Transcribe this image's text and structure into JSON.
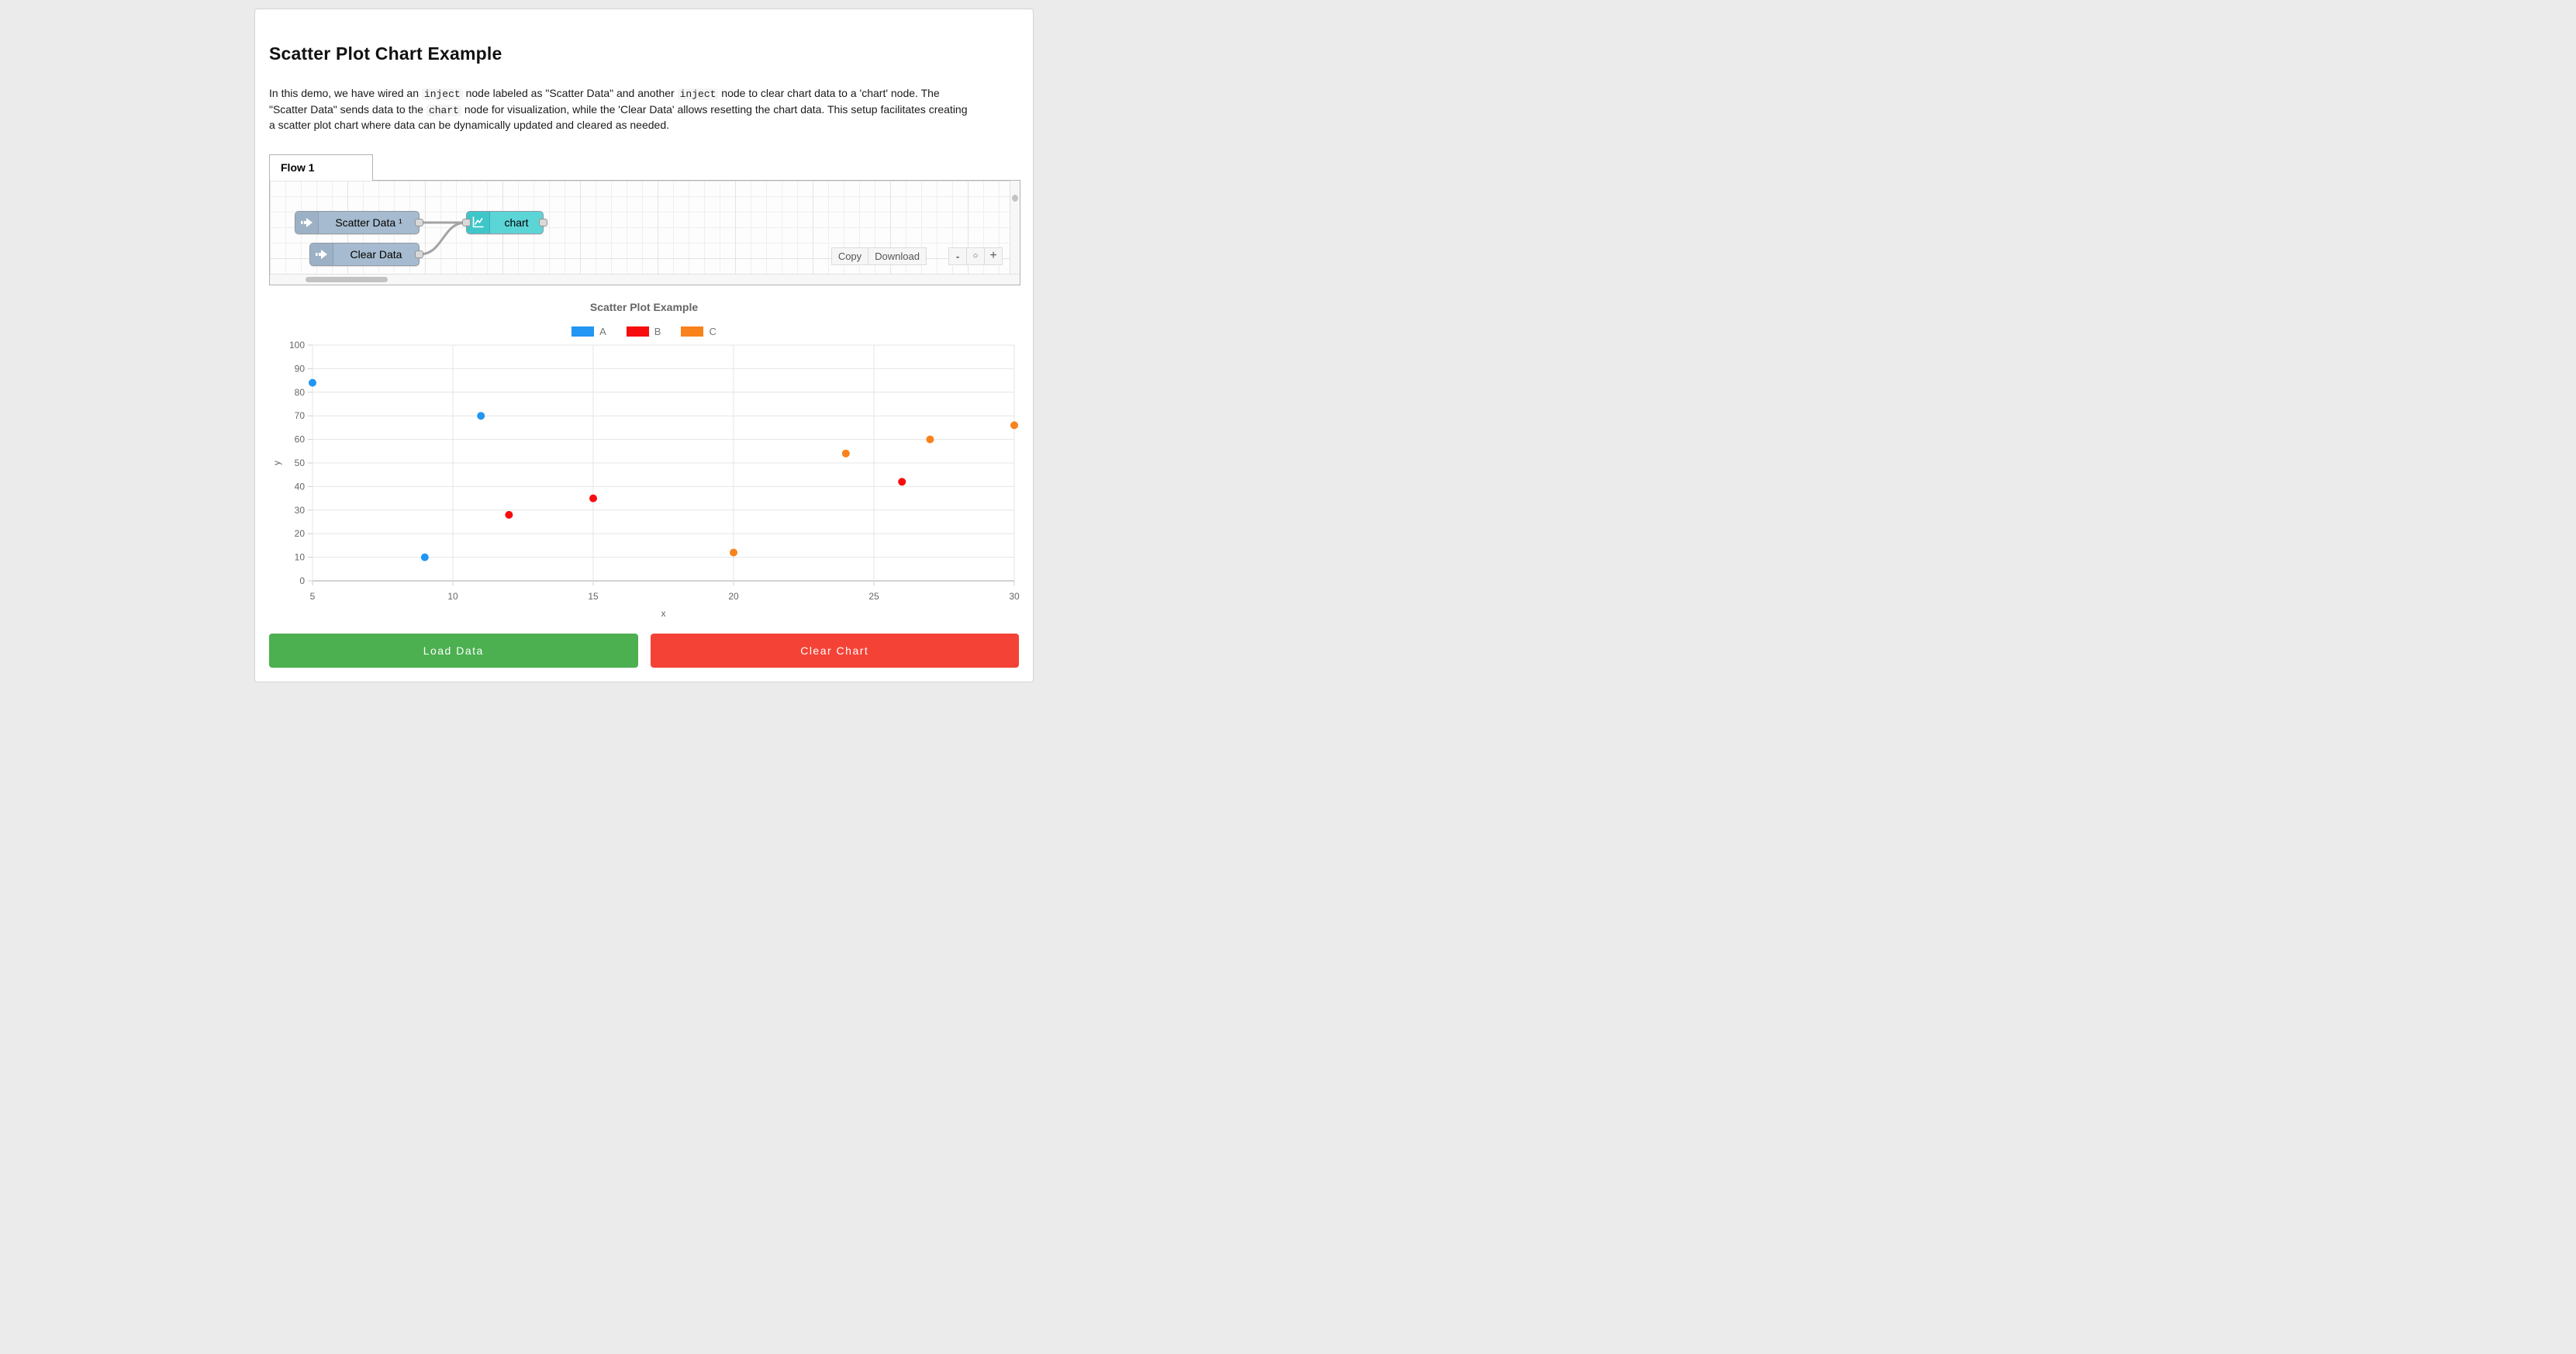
{
  "header": {
    "title": "Scatter Plot Chart Example"
  },
  "description": {
    "parts": [
      {
        "t": "text",
        "v": "In this demo, we have wired an "
      },
      {
        "t": "code",
        "v": "inject"
      },
      {
        "t": "text",
        "v": " node labeled as \"Scatter Data\" and another "
      },
      {
        "t": "code",
        "v": "inject"
      },
      {
        "t": "text",
        "v": " node to clear chart data to a 'chart' node. The \"Scatter Data\" sends data to the "
      },
      {
        "t": "code",
        "v": "chart"
      },
      {
        "t": "text",
        "v": " node for visualization, while the 'Clear Data' allows resetting the chart data. This setup facilitates creating a scatter plot chart where data can be dynamically updated and cleared as needed."
      }
    ]
  },
  "flow": {
    "tab_label": "Flow 1",
    "nodes": [
      {
        "label": "Scatter Data ¹",
        "type": "inject",
        "color": "#a6bbcf"
      },
      {
        "label": "Clear Data",
        "type": "inject",
        "color": "#a6bbcf"
      },
      {
        "label": "chart",
        "type": "chart",
        "color": "#5cd5d7"
      }
    ],
    "toolbar": {
      "copy": "Copy",
      "download": "Download"
    },
    "zoom": {
      "out": "-",
      "reset": "○",
      "in": "+"
    }
  },
  "chart_data": {
    "type": "scatter",
    "title": "Scatter Plot Example",
    "xlabel": "x",
    "ylabel": "y",
    "xlim": [
      5,
      30
    ],
    "ylim": [
      0,
      100
    ],
    "x_ticks": [
      5,
      10,
      15,
      20,
      25,
      30
    ],
    "y_ticks": [
      0,
      10,
      20,
      30,
      40,
      50,
      60,
      70,
      80,
      90,
      100
    ],
    "grid": true,
    "legend_position": "top",
    "series": [
      {
        "name": "A",
        "color": "#2196f3",
        "points": [
          [
            5,
            84
          ],
          [
            9,
            10
          ],
          [
            11,
            70
          ]
        ]
      },
      {
        "name": "B",
        "color": "#f70d0d",
        "points": [
          [
            12,
            28
          ],
          [
            15,
            35
          ],
          [
            26,
            42
          ]
        ]
      },
      {
        "name": "C",
        "color": "#f8821c",
        "points": [
          [
            20,
            12
          ],
          [
            24,
            54
          ],
          [
            27,
            60
          ],
          [
            30,
            66
          ]
        ]
      }
    ]
  },
  "actions": {
    "load_label": "Load Data",
    "load_color": "#4caf50",
    "clear_label": "Clear Chart",
    "clear_color": "#f44336"
  }
}
